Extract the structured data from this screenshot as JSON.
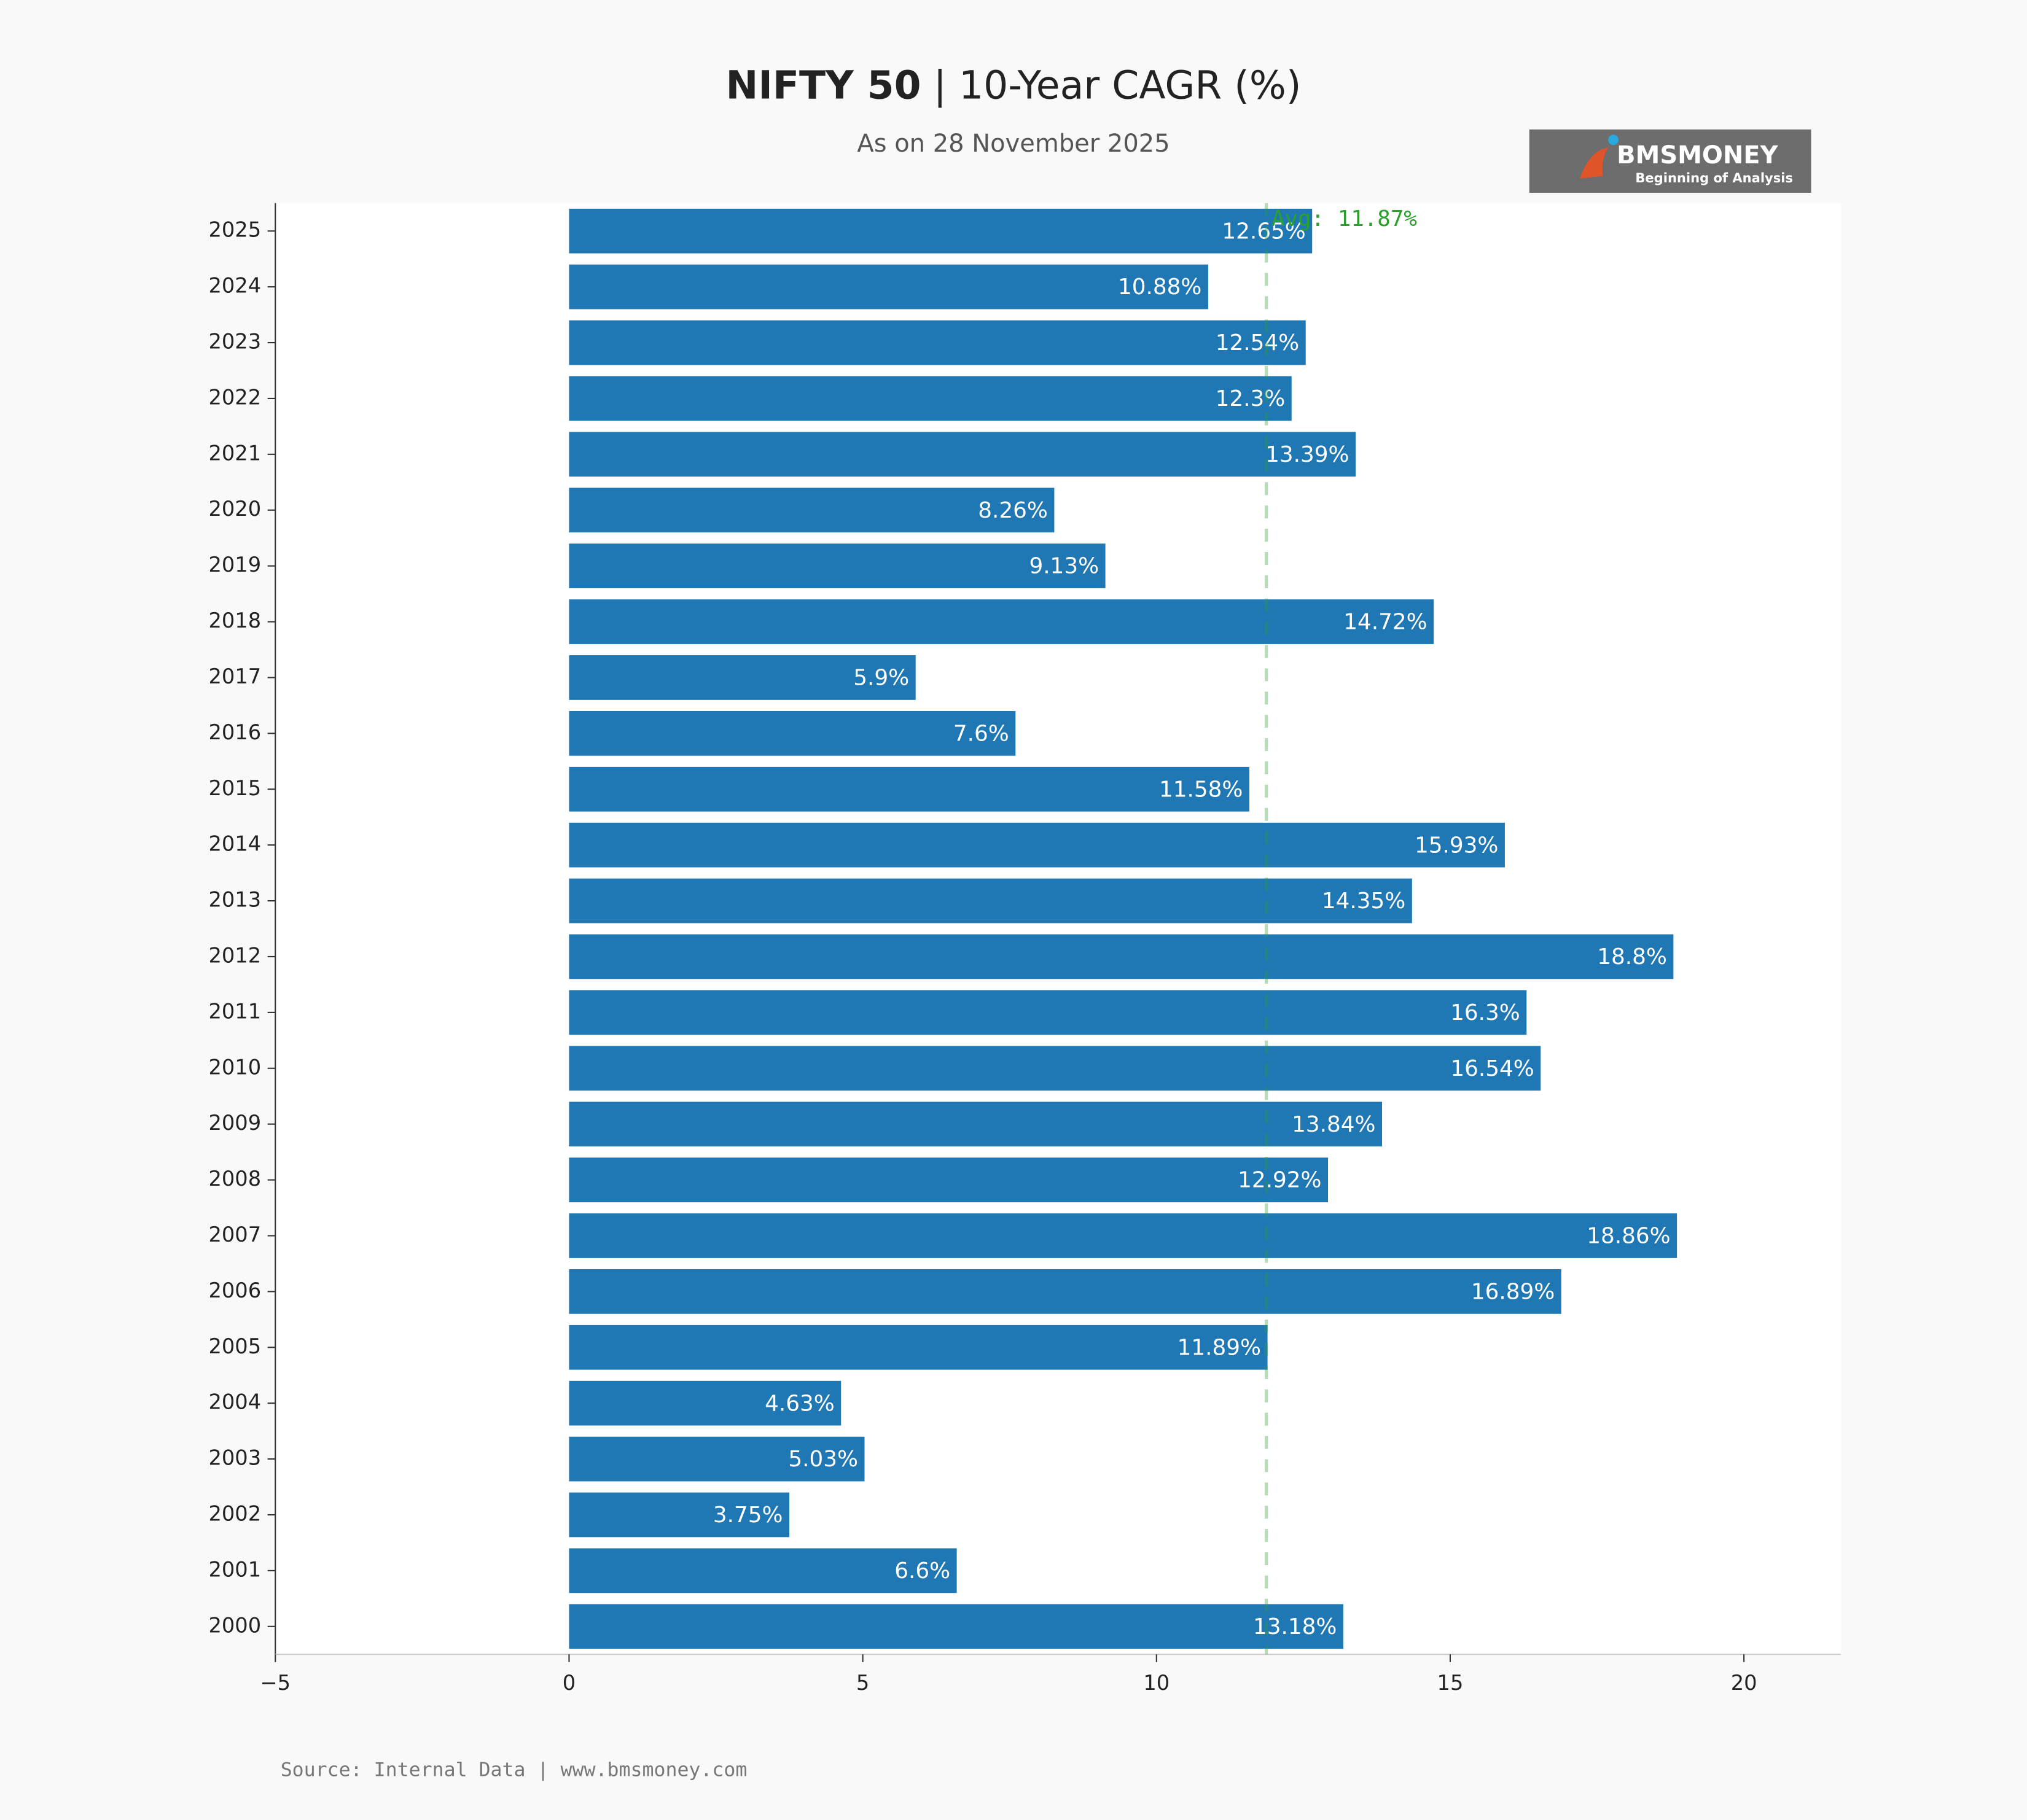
{
  "chart_data": {
    "type": "bar",
    "orientation": "horizontal",
    "title": {
      "bold": "NIFTY 50",
      "rest": "| 10-Year CAGR (%)"
    },
    "subtitle": "As on 28 November 2025",
    "logo": {
      "name": "BMSMONEY",
      "tagline": "Beginning of Analysis"
    },
    "source": "Source: Internal Data | www.bmsmoney.com",
    "categories": [
      "2025",
      "2024",
      "2023",
      "2022",
      "2021",
      "2020",
      "2019",
      "2018",
      "2017",
      "2016",
      "2015",
      "2014",
      "2013",
      "2012",
      "2011",
      "2010",
      "2009",
      "2008",
      "2007",
      "2006",
      "2005",
      "2004",
      "2003",
      "2002",
      "2001",
      "2000"
    ],
    "values": [
      12.65,
      10.88,
      12.54,
      12.3,
      13.39,
      8.26,
      9.13,
      14.72,
      5.9,
      7.6,
      11.58,
      15.93,
      14.35,
      18.8,
      16.3,
      16.54,
      13.84,
      12.92,
      18.86,
      16.89,
      11.89,
      4.63,
      5.03,
      3.75,
      6.6,
      13.18
    ],
    "value_labels": [
      "12.65%",
      "10.88%",
      "12.54%",
      "12.3%",
      "13.39%",
      "8.26%",
      "9.13%",
      "14.72%",
      "5.9%",
      "7.6%",
      "11.58%",
      "15.93%",
      "14.35%",
      "18.8%",
      "16.3%",
      "16.54%",
      "13.84%",
      "12.92%",
      "18.86%",
      "16.89%",
      "11.89%",
      "4.63%",
      "5.03%",
      "3.75%",
      "6.6%",
      "13.18%"
    ],
    "color": "#1f77b4",
    "average": {
      "value": 11.87,
      "label": "Avg: 11.87%",
      "color": "#2ca02c"
    },
    "xlim": [
      -5,
      21.65
    ],
    "xticks": [
      {
        "value": -5,
        "label": "−5"
      },
      0,
      5,
      10,
      15,
      20
    ],
    "grid": false
  }
}
